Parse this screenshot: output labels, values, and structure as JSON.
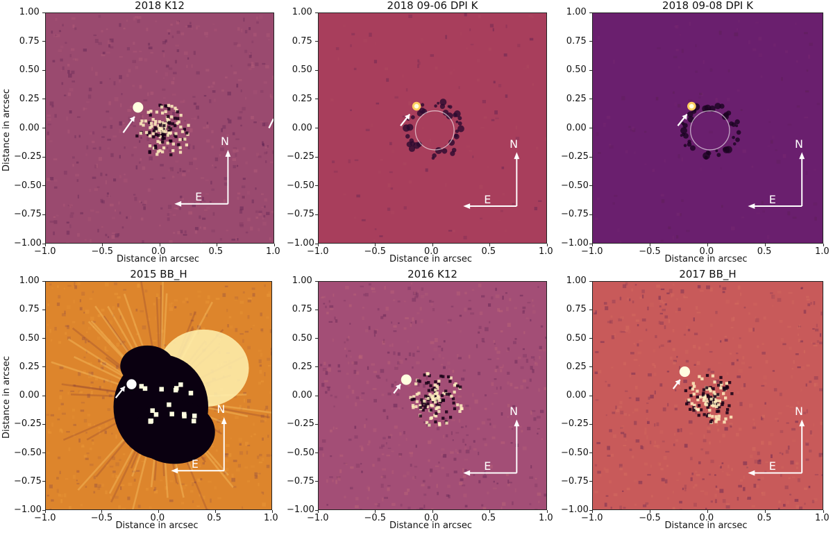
{
  "panels": [
    {
      "title": "2018 K12",
      "colors": {
        "bg": "#9a4a6f",
        "noise": "#b8607a"
      }
    },
    {
      "title": "2018 09-06 DPI K",
      "colors": {
        "bg": "#a83e5c",
        "noise": "#b04a60"
      }
    },
    {
      "title": "2018 09-08 DPI K",
      "colors": {
        "bg": "#6a1f6e",
        "noise": "#7a2a72"
      }
    },
    {
      "title": "2015 BB_H",
      "colors": {
        "bg": "#d67a2a",
        "noise": "#f0a040"
      }
    },
    {
      "title": "2016 K12",
      "colors": {
        "bg": "#a34e76",
        "noise": "#c06878"
      }
    },
    {
      "title": "2017 BB_H",
      "colors": {
        "bg": "#c85a5a",
        "noise": "#d87060"
      }
    }
  ],
  "axes": {
    "xlabel": "Distance in arcsec",
    "ylabel": "Distance in arcsec",
    "xticks": [
      "−1.0",
      "−0.5",
      "0.0",
      "0.5",
      "1.0"
    ],
    "yticks": [
      "1.00",
      "0.75",
      "0.50",
      "0.25",
      "0.00",
      "−0.25",
      "−0.50",
      "−0.75",
      "−1.00"
    ]
  },
  "compass": {
    "north": "N",
    "east": "E"
  },
  "colors": {
    "arrow": "#ffffff",
    "core_dark": "#0a0010",
    "core_bright": "#ffffe0"
  }
}
